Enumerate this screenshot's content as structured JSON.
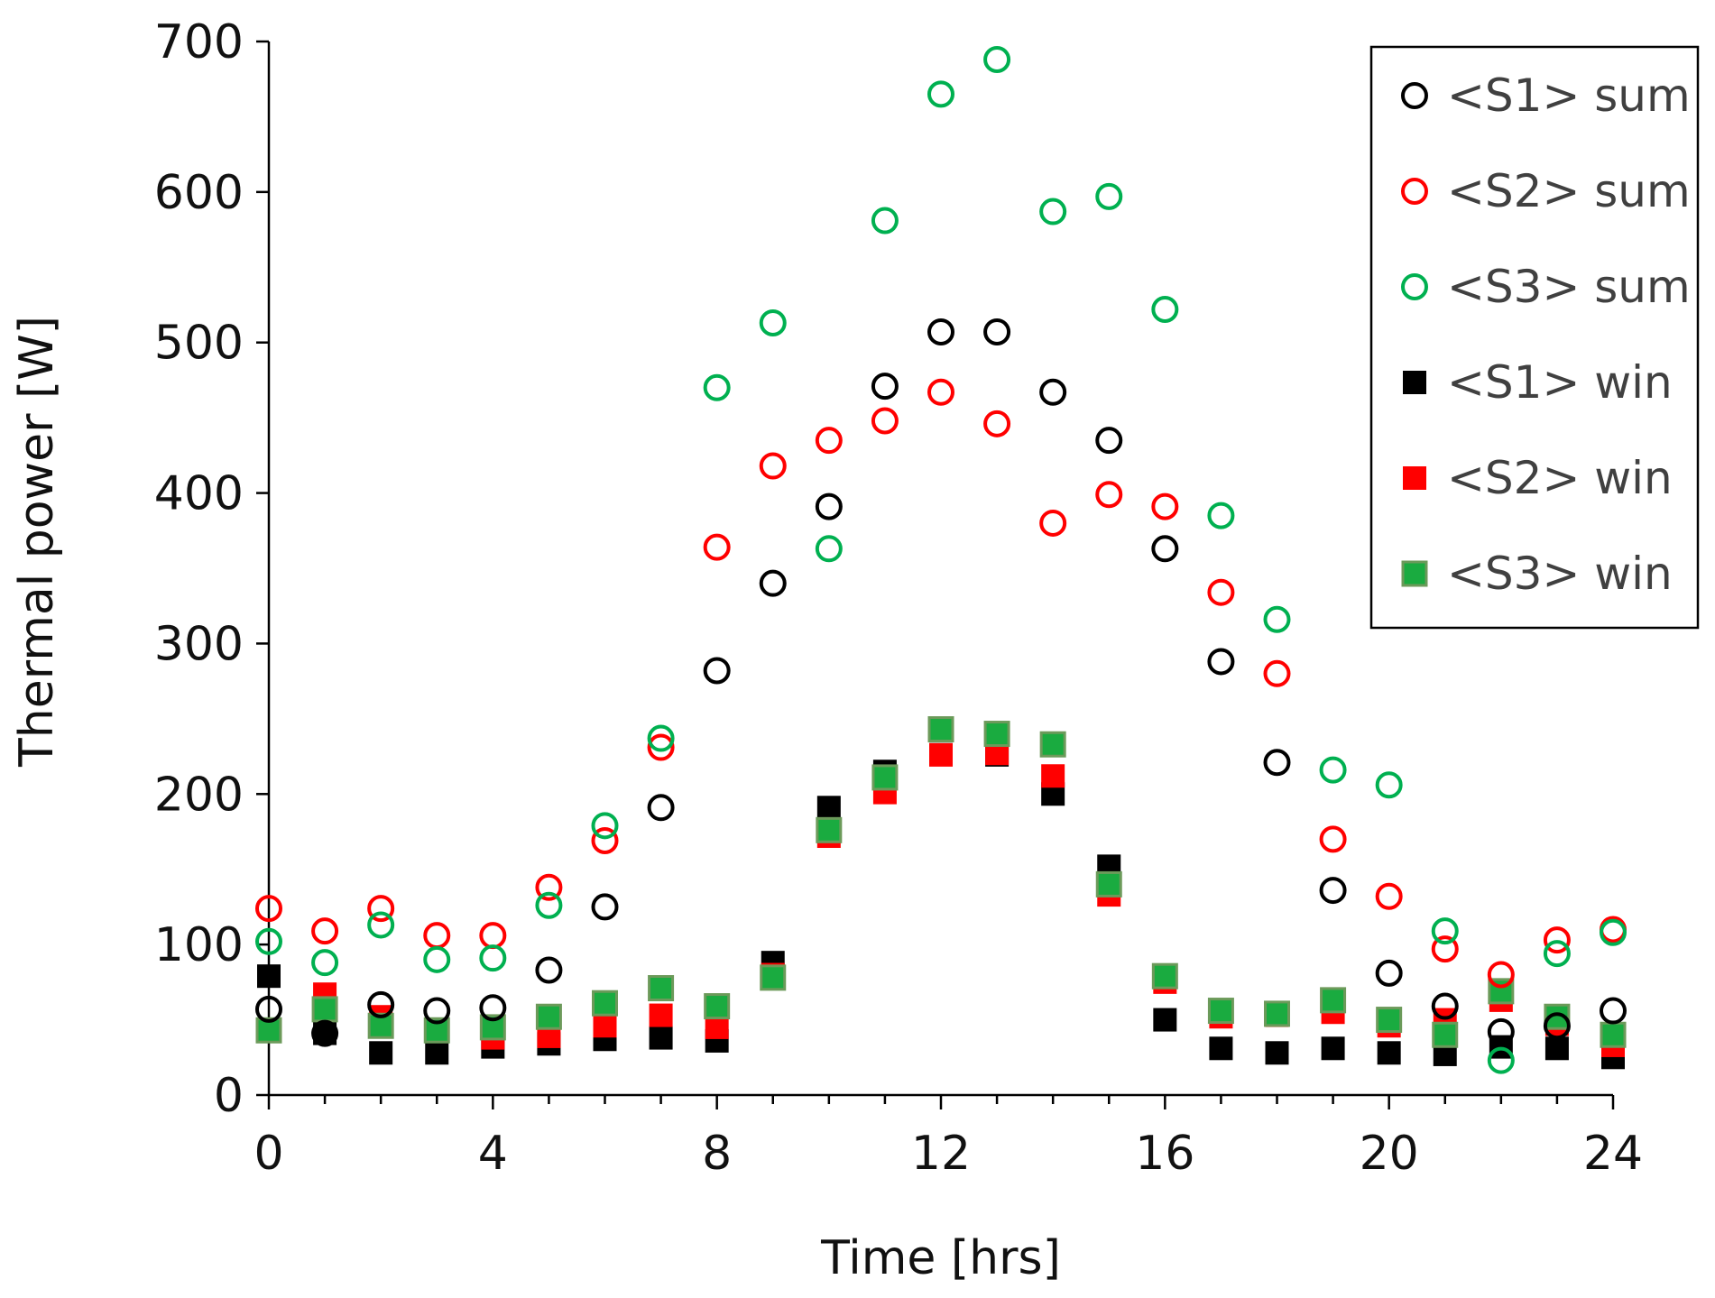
{
  "chart_data": {
    "type": "scatter",
    "title": "",
    "xlabel": "Time [hrs]",
    "ylabel": "Thermal power [W]",
    "xlim": [
      0,
      24
    ],
    "ylim": [
      0,
      700
    ],
    "xticks": [
      0,
      4,
      8,
      12,
      16,
      20,
      24
    ],
    "yticks": [
      0,
      100,
      200,
      300,
      400,
      500,
      600,
      700
    ],
    "grid": false,
    "legend_position": "top-right",
    "x": [
      0,
      1,
      2,
      3,
      4,
      5,
      6,
      7,
      8,
      9,
      10,
      11,
      12,
      13,
      14,
      15,
      16,
      17,
      18,
      19,
      20,
      21,
      22,
      23,
      24
    ],
    "series": [
      {
        "name": "<S1> sum",
        "marker": "open-circle",
        "color": "#000000",
        "values": [
          57,
          41,
          60,
          56,
          58,
          83,
          125,
          191,
          282,
          340,
          391,
          471,
          507,
          507,
          467,
          435,
          363,
          288,
          221,
          136,
          81,
          59,
          42,
          46,
          56
        ]
      },
      {
        "name": "<S2> sum",
        "marker": "open-circle",
        "color": "#ff0000",
        "values": [
          124,
          109,
          124,
          106,
          106,
          138,
          169,
          231,
          364,
          418,
          435,
          448,
          467,
          446,
          380,
          399,
          391,
          334,
          280,
          170,
          132,
          97,
          80,
          103,
          110
        ]
      },
      {
        "name": "<S3> sum",
        "marker": "open-circle",
        "color": "#00b050",
        "values": [
          102,
          88,
          113,
          90,
          91,
          126,
          179,
          237,
          470,
          513,
          363,
          581,
          665,
          688,
          587,
          597,
          522,
          385,
          316,
          216,
          206,
          109,
          23,
          94,
          108
        ]
      },
      {
        "name": "<S1> win",
        "marker": "filled-square",
        "color": "#000000",
        "values": [
          79,
          41,
          28,
          28,
          32,
          34,
          37,
          38,
          36,
          88,
          191,
          215,
          242,
          226,
          200,
          152,
          50,
          31,
          28,
          31,
          28,
          27,
          32,
          31,
          25
        ]
      },
      {
        "name": "<S2> win",
        "marker": "filled-square",
        "color": "#ff0000",
        "values": [
          43,
          67,
          52,
          43,
          38,
          39,
          46,
          53,
          45,
          80,
          172,
          201,
          226,
          227,
          212,
          133,
          75,
          52,
          53,
          55,
          46,
          50,
          63,
          47,
          33
        ]
      },
      {
        "name": "<S3> win",
        "marker": "filled-square",
        "color": "#1aab40",
        "values": [
          43,
          57,
          46,
          43,
          45,
          52,
          61,
          71,
          59,
          78,
          176,
          211,
          243,
          240,
          233,
          140,
          79,
          56,
          54,
          63,
          50,
          40,
          69,
          52,
          40
        ]
      }
    ]
  }
}
